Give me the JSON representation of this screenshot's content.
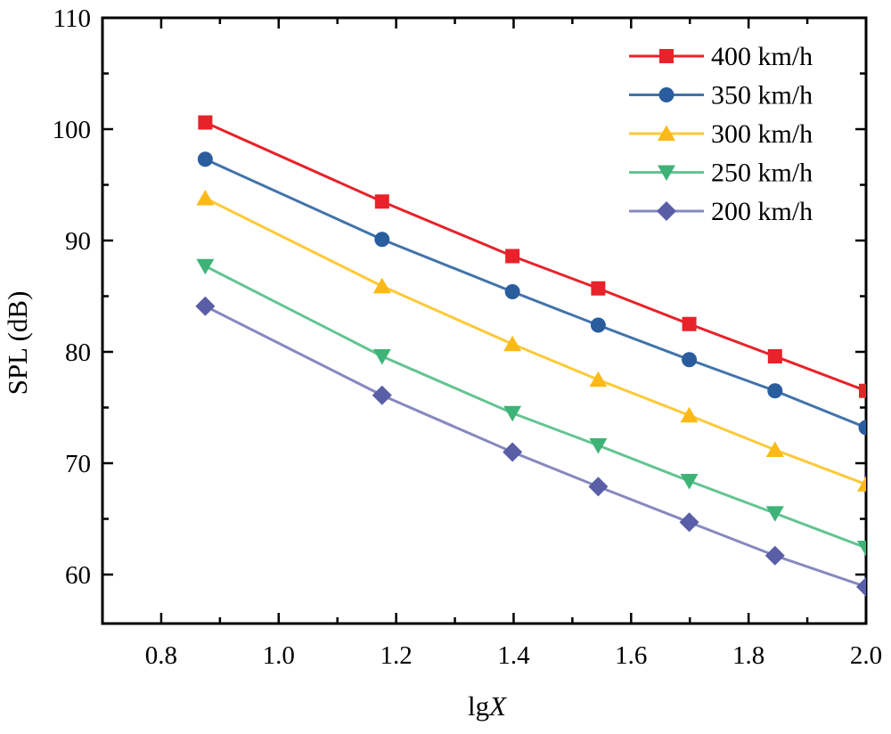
{
  "figure": {
    "background": "#ffffff",
    "axis_color": "#000000",
    "text_color": "#000000"
  },
  "chart_data": {
    "type": "line",
    "title": "",
    "xlabel": {
      "roman": "lg",
      "italic": "X"
    },
    "ylabel": "SPL (dB)",
    "xlim": [
      0.7,
      2.0
    ],
    "ylim": [
      55.6,
      110
    ],
    "grid": false,
    "legend_position": "top-right-inside",
    "x_major_ticks": [
      0.8,
      1.0,
      1.2,
      1.4,
      1.6,
      1.8,
      2.0
    ],
    "x_major_labels": [
      "0.8",
      "1.0",
      "1.2",
      "1.4",
      "1.6",
      "1.8",
      "2.0"
    ],
    "x_minor_ticks": [
      0.9,
      1.1,
      1.3,
      1.5,
      1.7,
      1.9
    ],
    "y_major_ticks": [
      60,
      70,
      80,
      90,
      100,
      110
    ],
    "y_major_labels": [
      "60",
      "70",
      "80",
      "90",
      "100",
      "110"
    ],
    "y_minor_ticks": [
      65,
      75,
      85,
      95,
      105
    ],
    "x": [
      0.875,
      1.176,
      1.398,
      1.544,
      1.699,
      1.845,
      2.0
    ],
    "series": [
      {
        "name": "400 km/h",
        "marker": "square",
        "color": "#e8222a",
        "line_color": "#e8222a",
        "values": [
          100.6,
          93.5,
          88.6,
          85.7,
          82.5,
          79.6,
          76.5
        ]
      },
      {
        "name": "350 km/h",
        "marker": "circle",
        "color": "#2a5d9e",
        "line_color": "#4273ab",
        "values": [
          97.3,
          90.1,
          85.4,
          82.4,
          79.3,
          76.5,
          73.2
        ]
      },
      {
        "name": "300 km/h",
        "marker": "triangle-up",
        "color": "#fbb917",
        "line_color": "#fdc938",
        "values": [
          93.8,
          85.9,
          80.7,
          77.5,
          74.3,
          71.2,
          68.1
        ]
      },
      {
        "name": "250 km/h",
        "marker": "triangle-down",
        "color": "#3eb377",
        "line_color": "#63c492",
        "values": [
          87.7,
          79.6,
          74.5,
          71.6,
          68.4,
          65.5,
          62.4
        ]
      },
      {
        "name": "200 km/h",
        "marker": "diamond",
        "color": "#5a5ea7",
        "line_color": "#8689bf",
        "values": [
          84.1,
          76.1,
          71.0,
          67.9,
          64.7,
          61.7,
          58.9
        ]
      }
    ]
  }
}
